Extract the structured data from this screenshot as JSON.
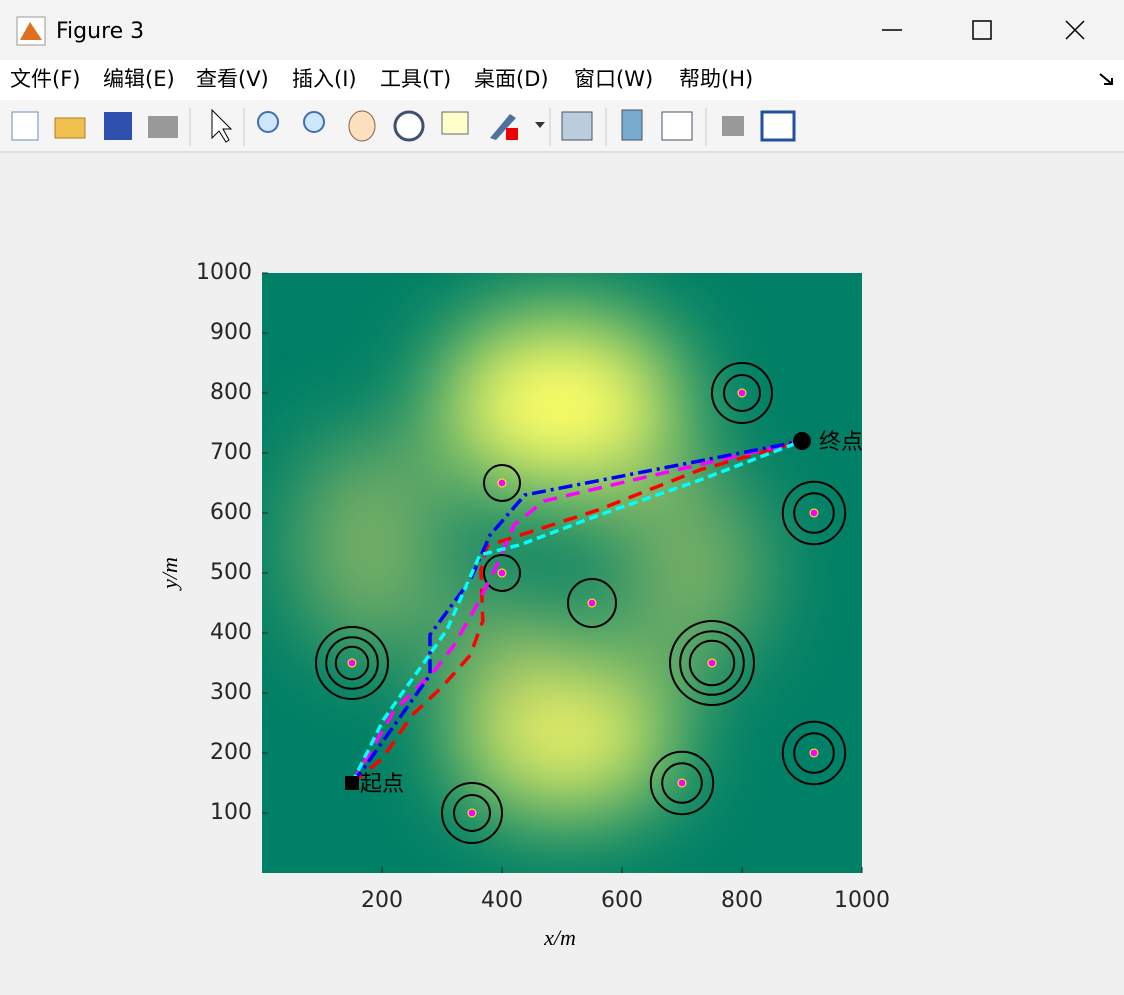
{
  "window": {
    "title": "Figure 3",
    "menu": [
      "文件(F)",
      "编辑(E)",
      "查看(V)",
      "插入(I)",
      "工具(T)",
      "桌面(D)",
      "窗口(W)",
      "帮助(H)"
    ]
  },
  "chart_data": {
    "type": "line",
    "xlabel": "x/m",
    "ylabel": "y/m",
    "xlim": [
      0,
      1000
    ],
    "ylim": [
      0,
      1000
    ],
    "xticks": [
      200,
      400,
      600,
      800,
      1000
    ],
    "yticks": [
      100,
      200,
      300,
      400,
      500,
      600,
      700,
      800,
      900,
      1000
    ],
    "start": {
      "x": 150,
      "y": 150,
      "label": "起点"
    },
    "end": {
      "x": 900,
      "y": 720,
      "label": "终点"
    },
    "threats": [
      {
        "x": 800,
        "y": 800,
        "radii": [
          50,
          30
        ]
      },
      {
        "x": 400,
        "y": 650,
        "radii": [
          30
        ]
      },
      {
        "x": 920,
        "y": 600,
        "radii": [
          52,
          33
        ]
      },
      {
        "x": 400,
        "y": 500,
        "radii": [
          30
        ]
      },
      {
        "x": 550,
        "y": 450,
        "radii": [
          40
        ]
      },
      {
        "x": 750,
        "y": 350,
        "radii": [
          70,
          53,
          37
        ]
      },
      {
        "x": 150,
        "y": 350,
        "radii": [
          60,
          43,
          27
        ]
      },
      {
        "x": 920,
        "y": 200,
        "radii": [
          52,
          33
        ]
      },
      {
        "x": 700,
        "y": 150,
        "radii": [
          52,
          33
        ]
      },
      {
        "x": 350,
        "y": 100,
        "radii": [
          50,
          30
        ]
      }
    ],
    "series": [
      {
        "color": "#ff0000",
        "dash": "14 9",
        "x": [
          150,
          200,
          250,
          300,
          347,
          368,
          365,
          375,
          430,
          560,
          730,
          900
        ],
        "values": [
          150,
          190,
          263,
          310,
          363,
          420,
          505,
          545,
          563,
          605,
          672,
          720
        ]
      },
      {
        "color": "#ff00ff",
        "dash": "14 9",
        "x": [
          150,
          220,
          290,
          320,
          360,
          390,
          420,
          470,
          640,
          900
        ],
        "values": [
          150,
          270,
          340,
          380,
          450,
          510,
          580,
          620,
          660,
          720
        ]
      },
      {
        "color": "#0000ff",
        "dash": "14 5 3 5",
        "x": [
          150,
          168,
          280,
          280,
          347,
          380,
          438,
          900
        ],
        "values": [
          150,
          172,
          330,
          397,
          488,
          563,
          630,
          720
        ]
      },
      {
        "color": "#00ffff",
        "dash": "9 5",
        "x": [
          150,
          202,
          285,
          308,
          330,
          363,
          430,
          563,
          730,
          900
        ],
        "values": [
          150,
          255,
          372,
          405,
          455,
          530,
          547,
          597,
          655,
          720
        ]
      }
    ]
  }
}
